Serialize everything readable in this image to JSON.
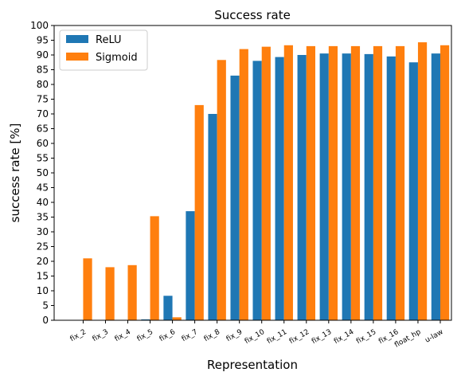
{
  "chart_data": {
    "type": "bar",
    "title": "Success rate",
    "xlabel": "Representation",
    "ylabel": "success rate [%]",
    "ylim": [
      0,
      100
    ],
    "yticks": [
      0,
      5,
      10,
      15,
      20,
      25,
      30,
      35,
      40,
      45,
      50,
      55,
      60,
      65,
      70,
      75,
      80,
      85,
      90,
      95,
      100
    ],
    "grid": false,
    "legend_position": "top-left",
    "categories": [
      "fix_2",
      "fix_3",
      "fix_4",
      "fix_5",
      "fix_6",
      "fix_7",
      "fix_8",
      "fix_9",
      "fix_10",
      "fix_11",
      "fix_12",
      "fix_13",
      "fix_14",
      "fix_15",
      "fix_16",
      "float_hp",
      "u-law"
    ],
    "series": [
      {
        "name": "ReLU",
        "color": "#1f77b4",
        "values": [
          0,
          0,
          0,
          0.3,
          8.3,
          37,
          70,
          83,
          88,
          89.3,
          90,
          90.5,
          90.5,
          90.3,
          89.5,
          87.5,
          90.5
        ]
      },
      {
        "name": "Sigmoid",
        "color": "#ff7f0e",
        "values": [
          21,
          18,
          18.7,
          35.3,
          1,
          73,
          88.3,
          92,
          92.8,
          93.3,
          93,
          93,
          93,
          93,
          93,
          94.3,
          93.3
        ]
      }
    ]
  }
}
